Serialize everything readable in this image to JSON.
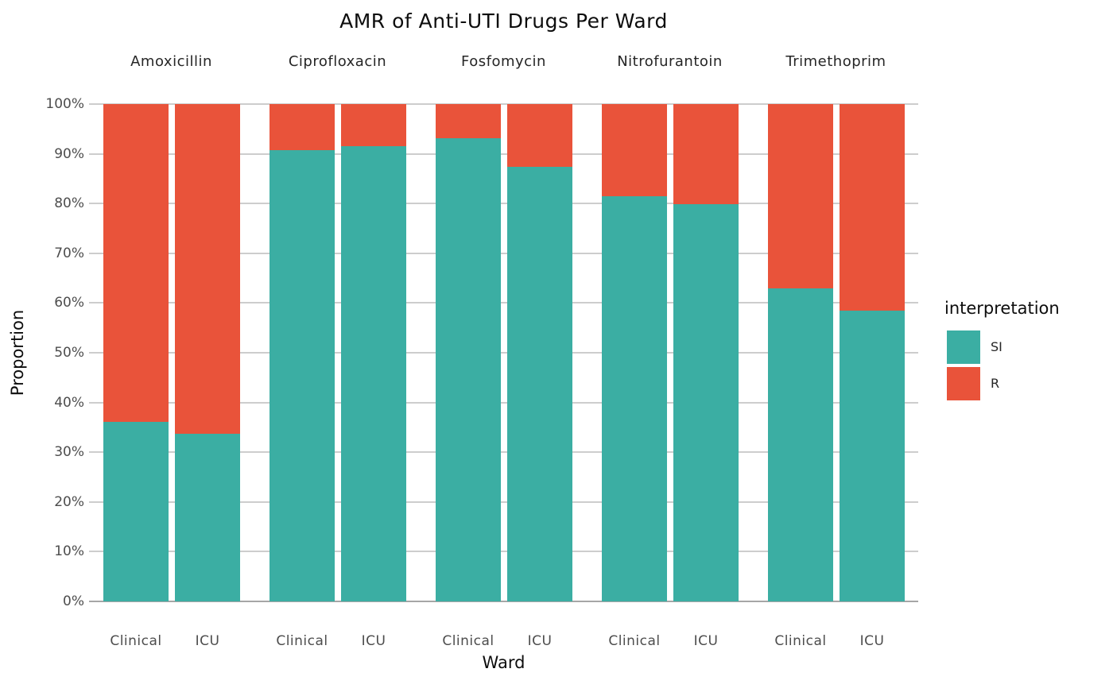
{
  "chart_data": {
    "type": "bar",
    "stacking": "percent",
    "orientation": "vertical",
    "title": "AMR of Anti-UTI Drugs Per Ward",
    "xlabel": "Ward",
    "ylabel": "Proportion",
    "ylim": [
      0,
      100
    ],
    "ytick_labels": [
      "0%",
      "10%",
      "20%",
      "30%",
      "40%",
      "50%",
      "60%",
      "70%",
      "80%",
      "90%",
      "100%"
    ],
    "categories": [
      "Clinical",
      "ICU"
    ],
    "legend_title": "interpretation",
    "series_order": [
      "SI",
      "R"
    ],
    "colors": {
      "SI": "#3BAEA3",
      "R": "#E9533A"
    },
    "grid": true,
    "legend_position": "right",
    "facets": [
      {
        "label": "Amoxicillin",
        "SI": [
          36.1,
          33.7
        ],
        "R": [
          63.9,
          66.3
        ]
      },
      {
        "label": "Ciprofloxacin",
        "SI": [
          90.8,
          91.6
        ],
        "R": [
          9.2,
          8.4
        ]
      },
      {
        "label": "Fosfomycin",
        "SI": [
          93.2,
          87.4
        ],
        "R": [
          6.8,
          12.6
        ]
      },
      {
        "label": "Nitrofurantoin",
        "SI": [
          81.4,
          79.8
        ],
        "R": [
          18.6,
          20.2
        ]
      },
      {
        "label": "Trimethoprim",
        "SI": [
          63.0,
          58.5
        ],
        "R": [
          37.0,
          41.5
        ]
      }
    ]
  },
  "legend": {
    "title": "interpretation",
    "items": [
      {
        "label": "SI",
        "color": "#3BAEA3"
      },
      {
        "label": "R",
        "color": "#E9533A"
      }
    ]
  }
}
